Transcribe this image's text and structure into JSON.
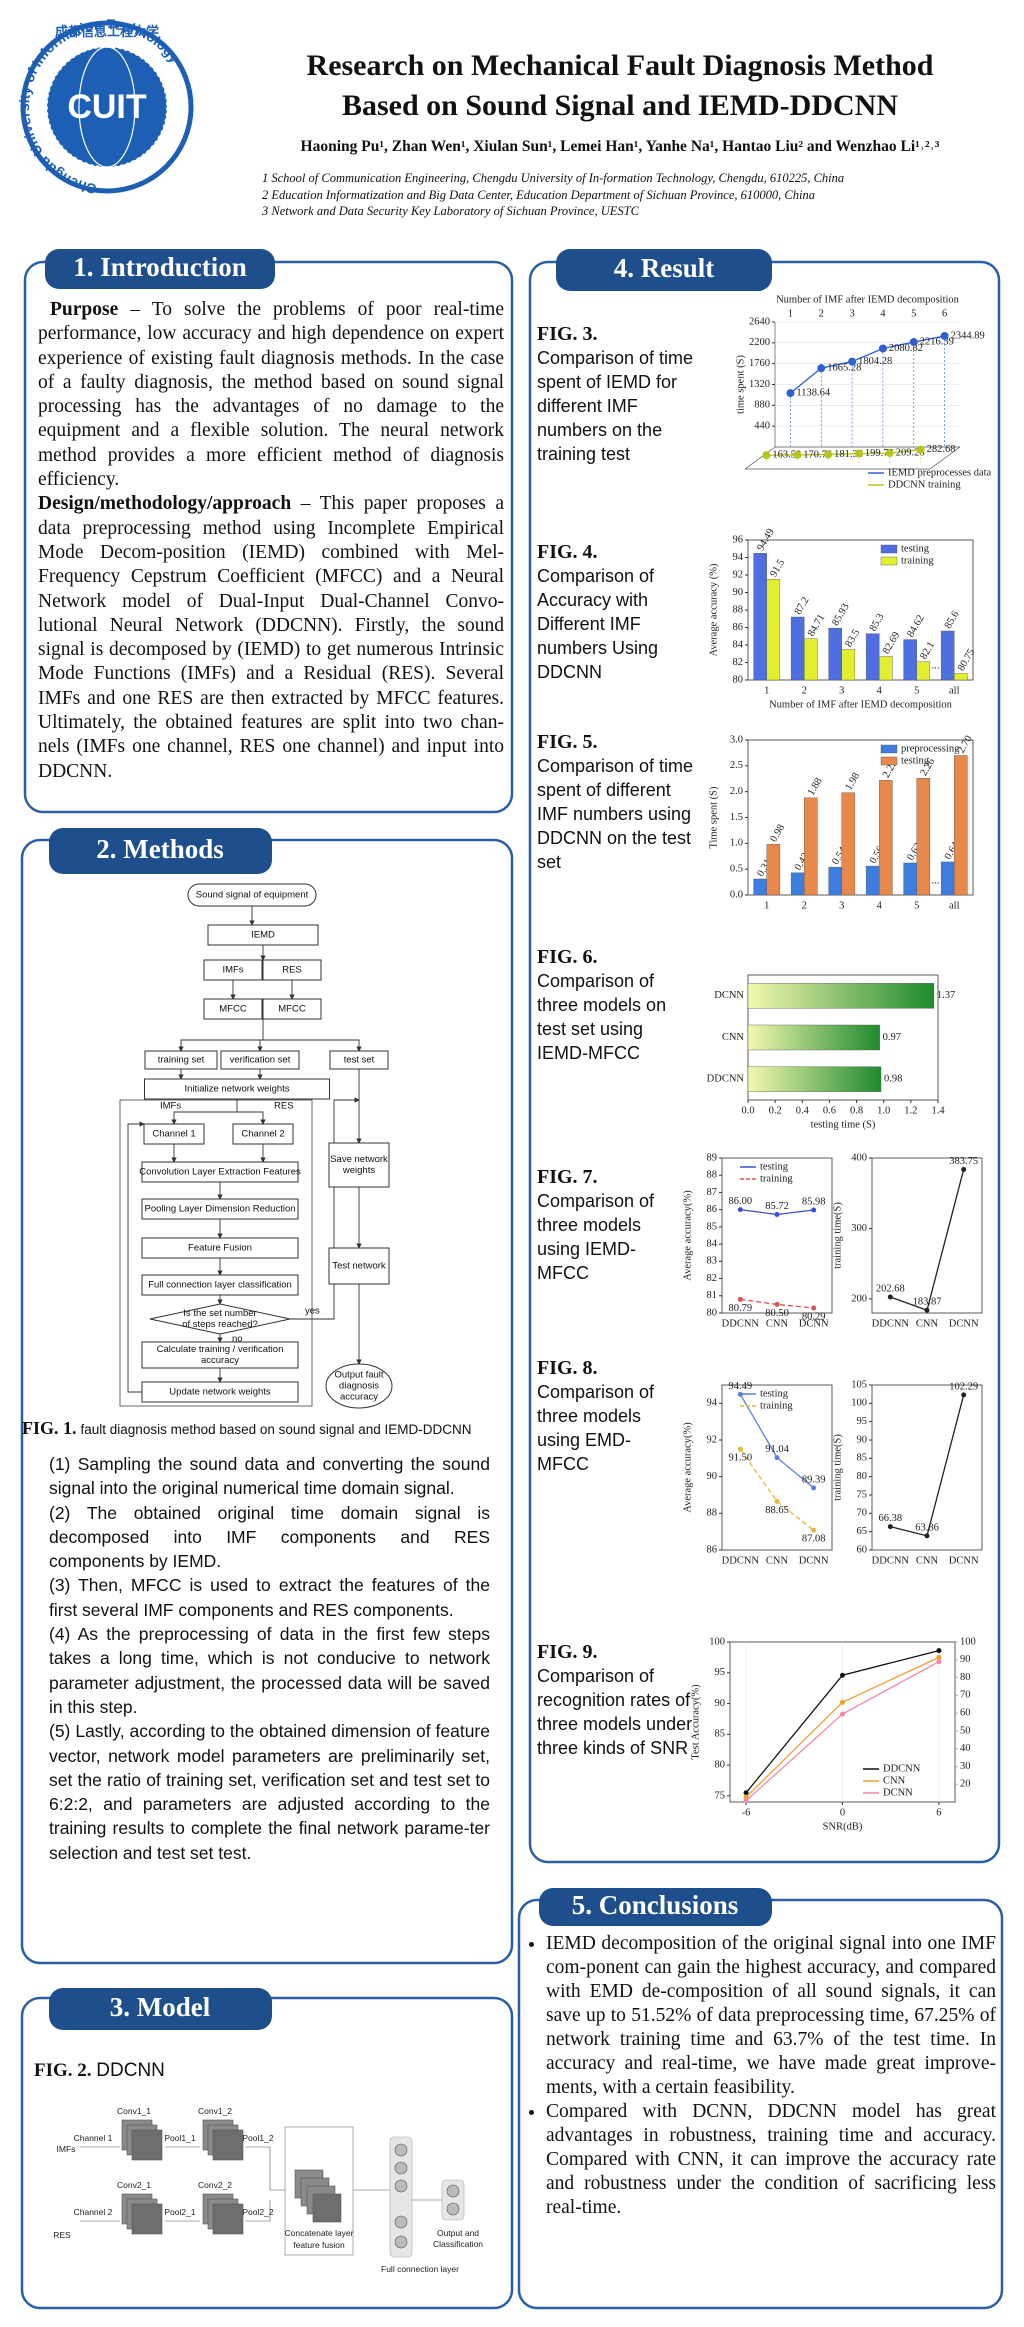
{
  "header": {
    "title": [
      "Research on Mechanical Fault Diagnosis Method",
      "Based on Sound Signal and IEMD-DDCNN"
    ],
    "authors": "Haoning Pu¹, Zhan Wen¹, Xiulan Sun¹, Lemei Han¹, Yanhe Na¹, Hantao Liu² and Wenzhao Li¹˒²˒³",
    "affiliations": [
      "1 School of Communication Engineering, Chengdu University of In-formation Technology, Chengdu, 610225, China",
      "2 Education Informatization and Big Data Center, Education Department of Sichuan Province, 610000, China",
      "3 Network and Data Security Key Laboratory of Sichuan Province, UESTC"
    ],
    "logo": {
      "text": "CUIT",
      "chinese": "成都信息工程大学",
      "ring": "Chengdu University of Information Technology"
    }
  },
  "introduction": {
    "heading": "1. Introduction",
    "paragraphs": [
      {
        "lead": "Purpose",
        "text": "– To solve the problems of poor real-time performance, low accuracy and high dependence on expert experience of existing fault diagnosis methods. In the case of a faulty diagnosis, the method based on sound signal processing has the advantages of no damage to the equipment and a flexible solution. The neural network method provides a more efficient method of diagnosis efficiency."
      },
      {
        "lead": "Design/methodology/approach",
        "text": "– This paper proposes a data preprocessing method using Incomplete Empirical Mode Decom-position (IEMD) combined with Mel-Frequency Cepstrum Coefficient (MFCC) and a Neural Network model of Dual-Input Dual-Channel Convo-lutional Neural Network (DDCNN). Firstly, the sound signal is decomposed by (IEMD) to get numerous Intrinsic Mode Functions (IMFs) and a Residual (RES). Several IMFs and one RES are then extracted by MFCC features. Ultimately, the obtained features are split into two chan-nels (IMFs one channel, RES one channel) and input into DDCNN."
      }
    ]
  },
  "methods": {
    "heading": "2. Methods",
    "flowchart": {
      "nodes": [
        [
          "Sound signal of equipment"
        ],
        [
          "IEMD"
        ],
        [
          "IMFs"
        ],
        [
          "RES"
        ],
        [
          "MFCC"
        ],
        [
          "MFCC"
        ],
        [
          "training set"
        ],
        [
          "verification set"
        ],
        [
          "test set"
        ],
        [
          "Initialize network weights"
        ],
        [
          "Channel 1"
        ],
        [
          "Channel 2"
        ],
        [
          "Convolution Layer Extraction Features"
        ],
        [
          "Pooling Layer Dimension Reduction"
        ],
        [
          "Feature Fusion"
        ],
        [
          "Full connection layer classification"
        ],
        [
          "Is the set number",
          "of steps reached?"
        ],
        [
          "Calculate training / verification",
          "accuracy"
        ],
        [
          "Update network weights"
        ],
        [
          "Save network",
          "weights"
        ],
        [
          "Test network"
        ],
        [
          "Output fault",
          "diagnosis",
          "accuracy"
        ]
      ],
      "edge_labels": [
        "IMFs",
        "RES",
        "yes",
        "no"
      ]
    },
    "caption": {
      "label": "FIG. 1.",
      "text": "fault diagnosis method based on sound signal and IEMD-DDCNN"
    },
    "steps": [
      "(1) Sampling the sound data and converting the sound signal into the original numerical time domain signal.",
      "(2) The obtained original time domain signal is decomposed into IMF components and RES components by IEMD.",
      "(3) Then, MFCC is used to extract the features of the first several IMF components and RES components.",
      "(4) As the preprocessing of data in the first few steps takes a long time, which is not conducive to network parameter adjustment, the processed data will be saved in this step.",
      "(5) Lastly, according to the obtained dimension of feature vector, network model parameters are preliminarily set, set the ratio of training set, verification set and test set to 6:2:2, and parameters are adjusted according to the training results to complete the final network parame-ter selection and test set test."
    ]
  },
  "model": {
    "heading": "3. Model",
    "caption": {
      "label": "FIG. 2.",
      "text": "DDCNN"
    },
    "diagram": {
      "conv1_1": "Conv1_1",
      "conv1_2": "Conv1_2",
      "channel1": "Channel 1",
      "imfs": "IMFs",
      "pool1_1": "Pool1_1",
      "pool1_2": "Pool1_2",
      "conv2_1": "Conv2_1",
      "conv2_2": "Conv2_2",
      "channel2": "Channel 2",
      "res": "RES",
      "pool2_1": "Pool2_1",
      "pool2_2": "Pool2_2",
      "concat": "Concatenate layer",
      "fusion": "feature fusion",
      "fc": "Full connection layer",
      "output": [
        "Output and",
        "Classification"
      ]
    }
  },
  "result": {
    "heading": "4. Result",
    "figures": [
      {
        "label": "FIG. 3.",
        "caption": "Comparison of time spent of IEMD for different IMF numbers on the training test"
      },
      {
        "label": "FIG. 4.",
        "caption": "Comparison of Accuracy with Different IMF numbers Using DDCNN"
      },
      {
        "label": "FIG. 5.",
        "caption": "Comparison of time spent of different IMF numbers using DDCNN on the test set"
      },
      {
        "label": "FIG. 6.",
        "caption": "Comparison of three models on test set using IEMD-MFCC"
      },
      {
        "label": "FIG. 7.",
        "caption": "Comparison of three models using IEMD-MFCC"
      },
      {
        "label": "FIG. 8.",
        "caption": "Comparison of three models using EMD-MFCC"
      },
      {
        "label": "FIG. 9.",
        "caption": "Comparison of recognition rates of three models under three kinds of SNR"
      }
    ]
  },
  "chart_data": [
    {
      "type": "line",
      "projection": "3d",
      "xlabel": "Number of IMF after IEMD decomposition",
      "ylabel": "time spent (S)",
      "categories": [
        "1",
        "2",
        "3",
        "4",
        "5",
        "6"
      ],
      "ylim": [
        0,
        2640
      ],
      "yticks": [
        440,
        880,
        1320,
        1760,
        2200,
        2640
      ],
      "legend": "lower right",
      "series": [
        {
          "name": "IEMD preprocesses data",
          "color": "#2f5fd0",
          "values": [
            1138.64,
            1665.28,
            1804.28,
            2080.82,
            2216.39,
            2344.89
          ]
        },
        {
          "name": "DDCNN training",
          "color": "#b8c41e",
          "values": [
            163.52,
            170.75,
            181.36,
            199.75,
            209.28,
            282.68
          ]
        }
      ]
    },
    {
      "type": "bar",
      "xlabel": "Number of IMF after IEMD decomposition",
      "ylabel": "Average accuracy (%)",
      "categories": [
        "1",
        "2",
        "3",
        "4",
        "5",
        "all"
      ],
      "gap_label": "...",
      "ylim": [
        80,
        96
      ],
      "yticks": [
        80,
        82,
        84,
        86,
        88,
        90,
        92,
        94,
        96
      ],
      "legend": "upper right",
      "series": [
        {
          "name": "testing",
          "color": "#4f6fe0",
          "values": [
            94.49,
            87.2,
            85.93,
            85.3,
            84.62,
            85.6
          ]
        },
        {
          "name": "training",
          "color": "#e2ee2e",
          "values": [
            91.5,
            84.71,
            83.5,
            82.69,
            82.1,
            80.75
          ]
        }
      ]
    },
    {
      "type": "bar",
      "ylabel": "Time spent (S)",
      "categories": [
        "1",
        "2",
        "3",
        "4",
        "5",
        "all"
      ],
      "gap_label": "...",
      "ylim": [
        0,
        3
      ],
      "yticks": [
        {
          "value": 0,
          "label": "0.0"
        },
        0.5,
        {
          "value": 1,
          "label": "1.0"
        },
        1.5,
        {
          "value": 2,
          "label": "2.0"
        },
        2.5,
        {
          "value": 3,
          "label": "3.0"
        }
      ],
      "legend": "upper right",
      "series": [
        {
          "name": "preprocessing",
          "color": "#3d7de0",
          "values": [
            0.31,
            0.43,
            0.54,
            0.56,
            0.62,
            0.64
          ]
        },
        {
          "name": "testing",
          "color": "#e8884a",
          "values": [
            0.98,
            1.88,
            1.98,
            2.22,
            2.26,
            2.7
          ],
          "value_labels": [
            "0.98",
            "1.88",
            "1.98",
            "2.22",
            "2.26",
            "2.70"
          ]
        }
      ]
    },
    {
      "type": "barh",
      "xlabel": "testing time (S)",
      "categories": [
        "DCNN",
        "CNN",
        "DDCNN"
      ],
      "xlim": [
        0,
        1.4
      ],
      "xticks": [
        {
          "value": 0,
          "label": "0.0"
        },
        0.2,
        0.4,
        0.6,
        0.8,
        {
          "value": 1,
          "label": "1.0"
        },
        1.2,
        1.4
      ],
      "gradient": [
        "#f4f8b0",
        "#1f8a2e"
      ],
      "values": [
        1.37,
        0.97,
        0.98
      ]
    },
    {
      "type": "line",
      "ylabel": "Average accuracy(%)",
      "categories": [
        "DDCNN",
        "CNN",
        "DCNN"
      ],
      "ylim": [
        80,
        89
      ],
      "yticks": [
        80,
        81,
        82,
        83,
        84,
        85,
        86,
        87,
        88,
        89
      ],
      "legend": "upper right",
      "series": [
        {
          "name": "testing",
          "color": "#3b4fd6",
          "values": [
            86,
            85.72,
            85.98
          ],
          "value_labels": [
            "86.00",
            "85.72",
            "85.98"
          ]
        },
        {
          "name": "training",
          "color": "#d9534f",
          "dashed": true,
          "values": [
            80.79,
            80.5,
            80.29
          ],
          "value_labels": [
            "80.79",
            "80.50",
            "80.29"
          ]
        }
      ]
    },
    {
      "type": "line",
      "ylabel": "training time(S)",
      "categories": [
        "DDCNN",
        "CNN",
        "DCNN"
      ],
      "ylim": [
        180,
        400
      ],
      "yticks": [
        200,
        300,
        400
      ],
      "series": [
        {
          "color": "#222222",
          "values": [
            202.68,
            183.87,
            383.75
          ]
        }
      ]
    },
    {
      "type": "line",
      "ylabel": "Average accuracy(%)",
      "categories": [
        "DDCNN",
        "CNN",
        "DCNN"
      ],
      "ylim": [
        86,
        95
      ],
      "yticks": [
        86,
        88,
        90,
        92,
        94
      ],
      "legend": "upper right",
      "series": [
        {
          "name": "testing",
          "color": "#5b7fe0",
          "values": [
            94.49,
            91.04,
            89.39
          ]
        },
        {
          "name": "training",
          "color": "#e2b93a",
          "dashed": true,
          "values": [
            91.5,
            88.65,
            87.08
          ],
          "value_labels": [
            "91.50",
            "88.65",
            "87.08"
          ]
        }
      ]
    },
    {
      "type": "line",
      "ylabel": "training time(S)",
      "categories": [
        "DDCNN",
        "CNN",
        "DCNN"
      ],
      "ylim": [
        60,
        105
      ],
      "yticks": [
        60,
        65,
        70,
        75,
        80,
        85,
        90,
        95,
        100,
        105
      ],
      "series": [
        {
          "color": "#222222",
          "values": [
            66.38,
            63.86,
            102.29
          ]
        }
      ]
    },
    {
      "type": "line",
      "xlabel": "SNR(dB)",
      "ylabel": "Test Accuracy(%)",
      "x": [
        -6,
        0,
        6
      ],
      "xlim": [
        -7,
        7
      ],
      "xticks": [
        -6,
        0,
        6
      ],
      "ylim": [
        74,
        100
      ],
      "yticks": [
        75,
        80,
        85,
        90,
        95,
        100
      ],
      "y2lim": [
        10,
        100
      ],
      "y2ticks": [
        20,
        30,
        40,
        50,
        60,
        70,
        80,
        90,
        100
      ],
      "y2color": "#f08aa8",
      "legend": "lower right",
      "series": [
        {
          "name": "DDCNN",
          "color": "#111111",
          "values": [
            75.5,
            94.6,
            98.6
          ]
        },
        {
          "name": "CNN",
          "color": "#f0a030",
          "values": [
            74.8,
            90.2,
            97.5
          ]
        },
        {
          "name": "DCNN",
          "color": "#f08aa8",
          "values": [
            74.2,
            88.3,
            96.8
          ]
        }
      ]
    }
  ],
  "conclusions": {
    "heading": "5. Conclusions",
    "items": [
      "IEMD decomposition of the original signal into one IMF com-ponent can gain the highest accuracy, and compared with EMD de-composition of all sound signals, it can save up to 51.52% of data preprocessing time, 67.25% of network training time and 63.7% of the test time. In accuracy and real-time, we have made great improve-ments, with a certain feasibility.",
      "Compared with DCNN, DDCNN model has great advantages in robustness, training time and accuracy. Compared with CNN, it can improve the accuracy rate and robustness under the condition of sacrificing less real-time."
    ]
  }
}
